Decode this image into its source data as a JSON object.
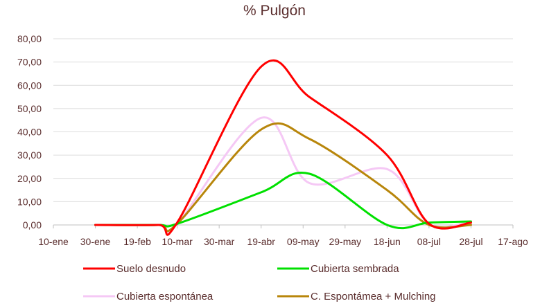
{
  "chart_data": {
    "type": "line",
    "title": "% Pulgón",
    "xlabel": "",
    "ylabel": "",
    "ylim": [
      0,
      80
    ],
    "yticks": [
      "0,00",
      "10,00",
      "20,00",
      "30,00",
      "40,00",
      "50,00",
      "60,00",
      "70,00",
      "80,00"
    ],
    "xticks": [
      "10-ene",
      "30-ene",
      "19-feb",
      "10-mar",
      "30-mar",
      "19-abr",
      "09-may",
      "29-may",
      "18-jun",
      "08-jul",
      "28-jul",
      "17-ago"
    ],
    "grid": true,
    "legend_position": "bottom",
    "x": [
      "30-ene",
      "01-mar",
      "10-mar",
      "19-abr",
      "12-may",
      "18-jun",
      "08-jul",
      "28-jul"
    ],
    "series": [
      {
        "name": "Suelo desnudo",
        "color": "#ff0000",
        "values": [
          0,
          0,
          1,
          68,
          55,
          30,
          0.5,
          1
        ]
      },
      {
        "name": "Cubierta sembrada",
        "color": "#00e000",
        "values": [
          0,
          0,
          0.5,
          14,
          22,
          0,
          1,
          1.5
        ]
      },
      {
        "name": "Cubierta espontánea",
        "color": "#f5c8f5",
        "values": [
          0,
          0,
          0.5,
          46,
          18,
          24,
          0.5,
          1.5
        ]
      },
      {
        "name": "C. Espontámea + Mulching",
        "color": "#b8860b",
        "values": [
          0,
          0,
          0.5,
          41,
          37,
          15,
          0,
          0
        ]
      }
    ]
  }
}
